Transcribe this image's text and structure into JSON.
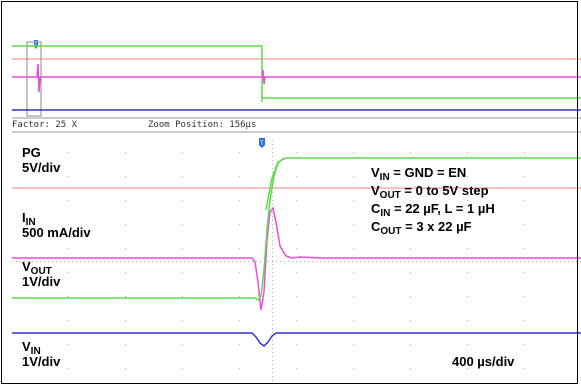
{
  "zoom_bar": {
    "factor": "Factor: 25 X",
    "zoom_position": "Zoom Position: 156µs"
  },
  "channels": {
    "pg": {
      "name": "PG",
      "scale": "5V/div",
      "color": "#5ddb4a"
    },
    "iin": {
      "name": "I",
      "sub": "IN",
      "scale": "500 mA/div",
      "color": "#e64fd8"
    },
    "vout": {
      "name": "V",
      "sub": "OUT",
      "scale": "1V/div",
      "color": "#5ddb4a"
    },
    "vin": {
      "name": "V",
      "sub": "IN",
      "scale": "1V/div",
      "color": "#3333cc"
    }
  },
  "conditions": {
    "line1": {
      "a": "V",
      "a_sub": "IN",
      "rest": " = GND = EN"
    },
    "line2": {
      "a": "V",
      "a_sub": "OUT",
      "rest": " = 0 to 5V step"
    },
    "line3": {
      "a": "C",
      "a_sub": "IN",
      "rest": " = 22 µF, L = 1 µH"
    },
    "line4": {
      "a": "C",
      "a_sub": "OUT",
      "rest": " = 3 x 22 µF"
    }
  },
  "timebase": "400 µs/div",
  "colors": {
    "grid_dot": "#b0b0b0",
    "reference_line": "#f08080",
    "trigger_marker": "#2a6fd6"
  }
}
